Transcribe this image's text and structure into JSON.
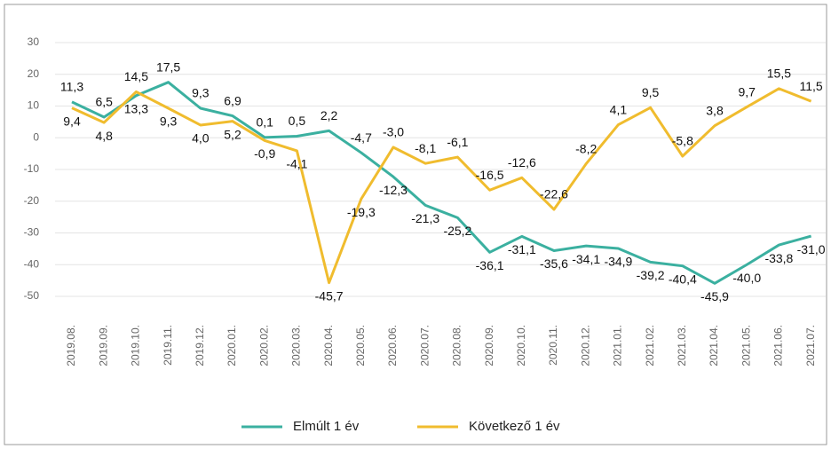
{
  "chart_data": {
    "type": "line",
    "categories": [
      "2019.08.",
      "2019.09.",
      "2019.10.",
      "2019.11.",
      "2019.12.",
      "2020.01.",
      "2020.02.",
      "2020.03.",
      "2020.04.",
      "2020.05.",
      "2020.06.",
      "2020.07.",
      "2020.08.",
      "2020.09.",
      "2020.10.",
      "2020.11.",
      "2020.12.",
      "2021.01.",
      "2021.02.",
      "2021.03.",
      "2021.04.",
      "2021.05.",
      "2021.06.",
      "2021.07."
    ],
    "series": [
      {
        "name": "Elmúlt 1 év",
        "color": "#3bb0a0",
        "values": [
          11.3,
          6.5,
          13.3,
          17.5,
          9.3,
          6.9,
          0.1,
          0.5,
          2.2,
          -4.7,
          -12.3,
          -21.3,
          -25.2,
          -36.1,
          -31.1,
          -35.6,
          -34.1,
          -34.9,
          -39.2,
          -40.4,
          -45.9,
          -40.0,
          -33.8,
          -31.0
        ],
        "value_labels": [
          "11,3",
          "6,5",
          "13,3",
          "17,5",
          "9,3",
          "6,9",
          "0,1",
          "0,5",
          "2,2",
          "-4,7",
          "-12,3",
          "-21,3",
          "-25,2",
          "-36,1",
          "-31,1",
          "-35,6",
          "-34,1",
          "-34,9",
          "-39,2",
          "-40,4",
          "-45,9",
          "-40,0",
          "-33,8",
          "-31,0"
        ]
      },
      {
        "name": "Következő 1 év",
        "color": "#f0bc2e",
        "values": [
          9.4,
          4.8,
          14.5,
          9.3,
          4.0,
          5.2,
          -0.9,
          -4.1,
          -45.7,
          -19.3,
          -3.0,
          -8.1,
          -6.1,
          -16.5,
          -12.6,
          -22.6,
          -8.2,
          4.1,
          9.5,
          -5.8,
          3.8,
          9.7,
          15.5,
          11.5
        ],
        "value_labels": [
          "9,4",
          "4,8",
          "14,5",
          "9,3",
          "4,0",
          "5,2",
          "-0,9",
          "-4,1",
          "-45,7",
          "-19,3",
          "-3,0",
          "-8,1",
          "-6,1",
          "-16,5",
          "-12,6",
          "-22,6",
          "-8,2",
          "4,1",
          "9,5",
          "-5,8",
          "3,8",
          "9,7",
          "15,5",
          "11,5"
        ]
      }
    ],
    "ylim": [
      -50,
      30
    ],
    "yticks": [
      30,
      20,
      10,
      0,
      -10,
      -20,
      -30,
      -40,
      -50
    ],
    "grid": true
  }
}
